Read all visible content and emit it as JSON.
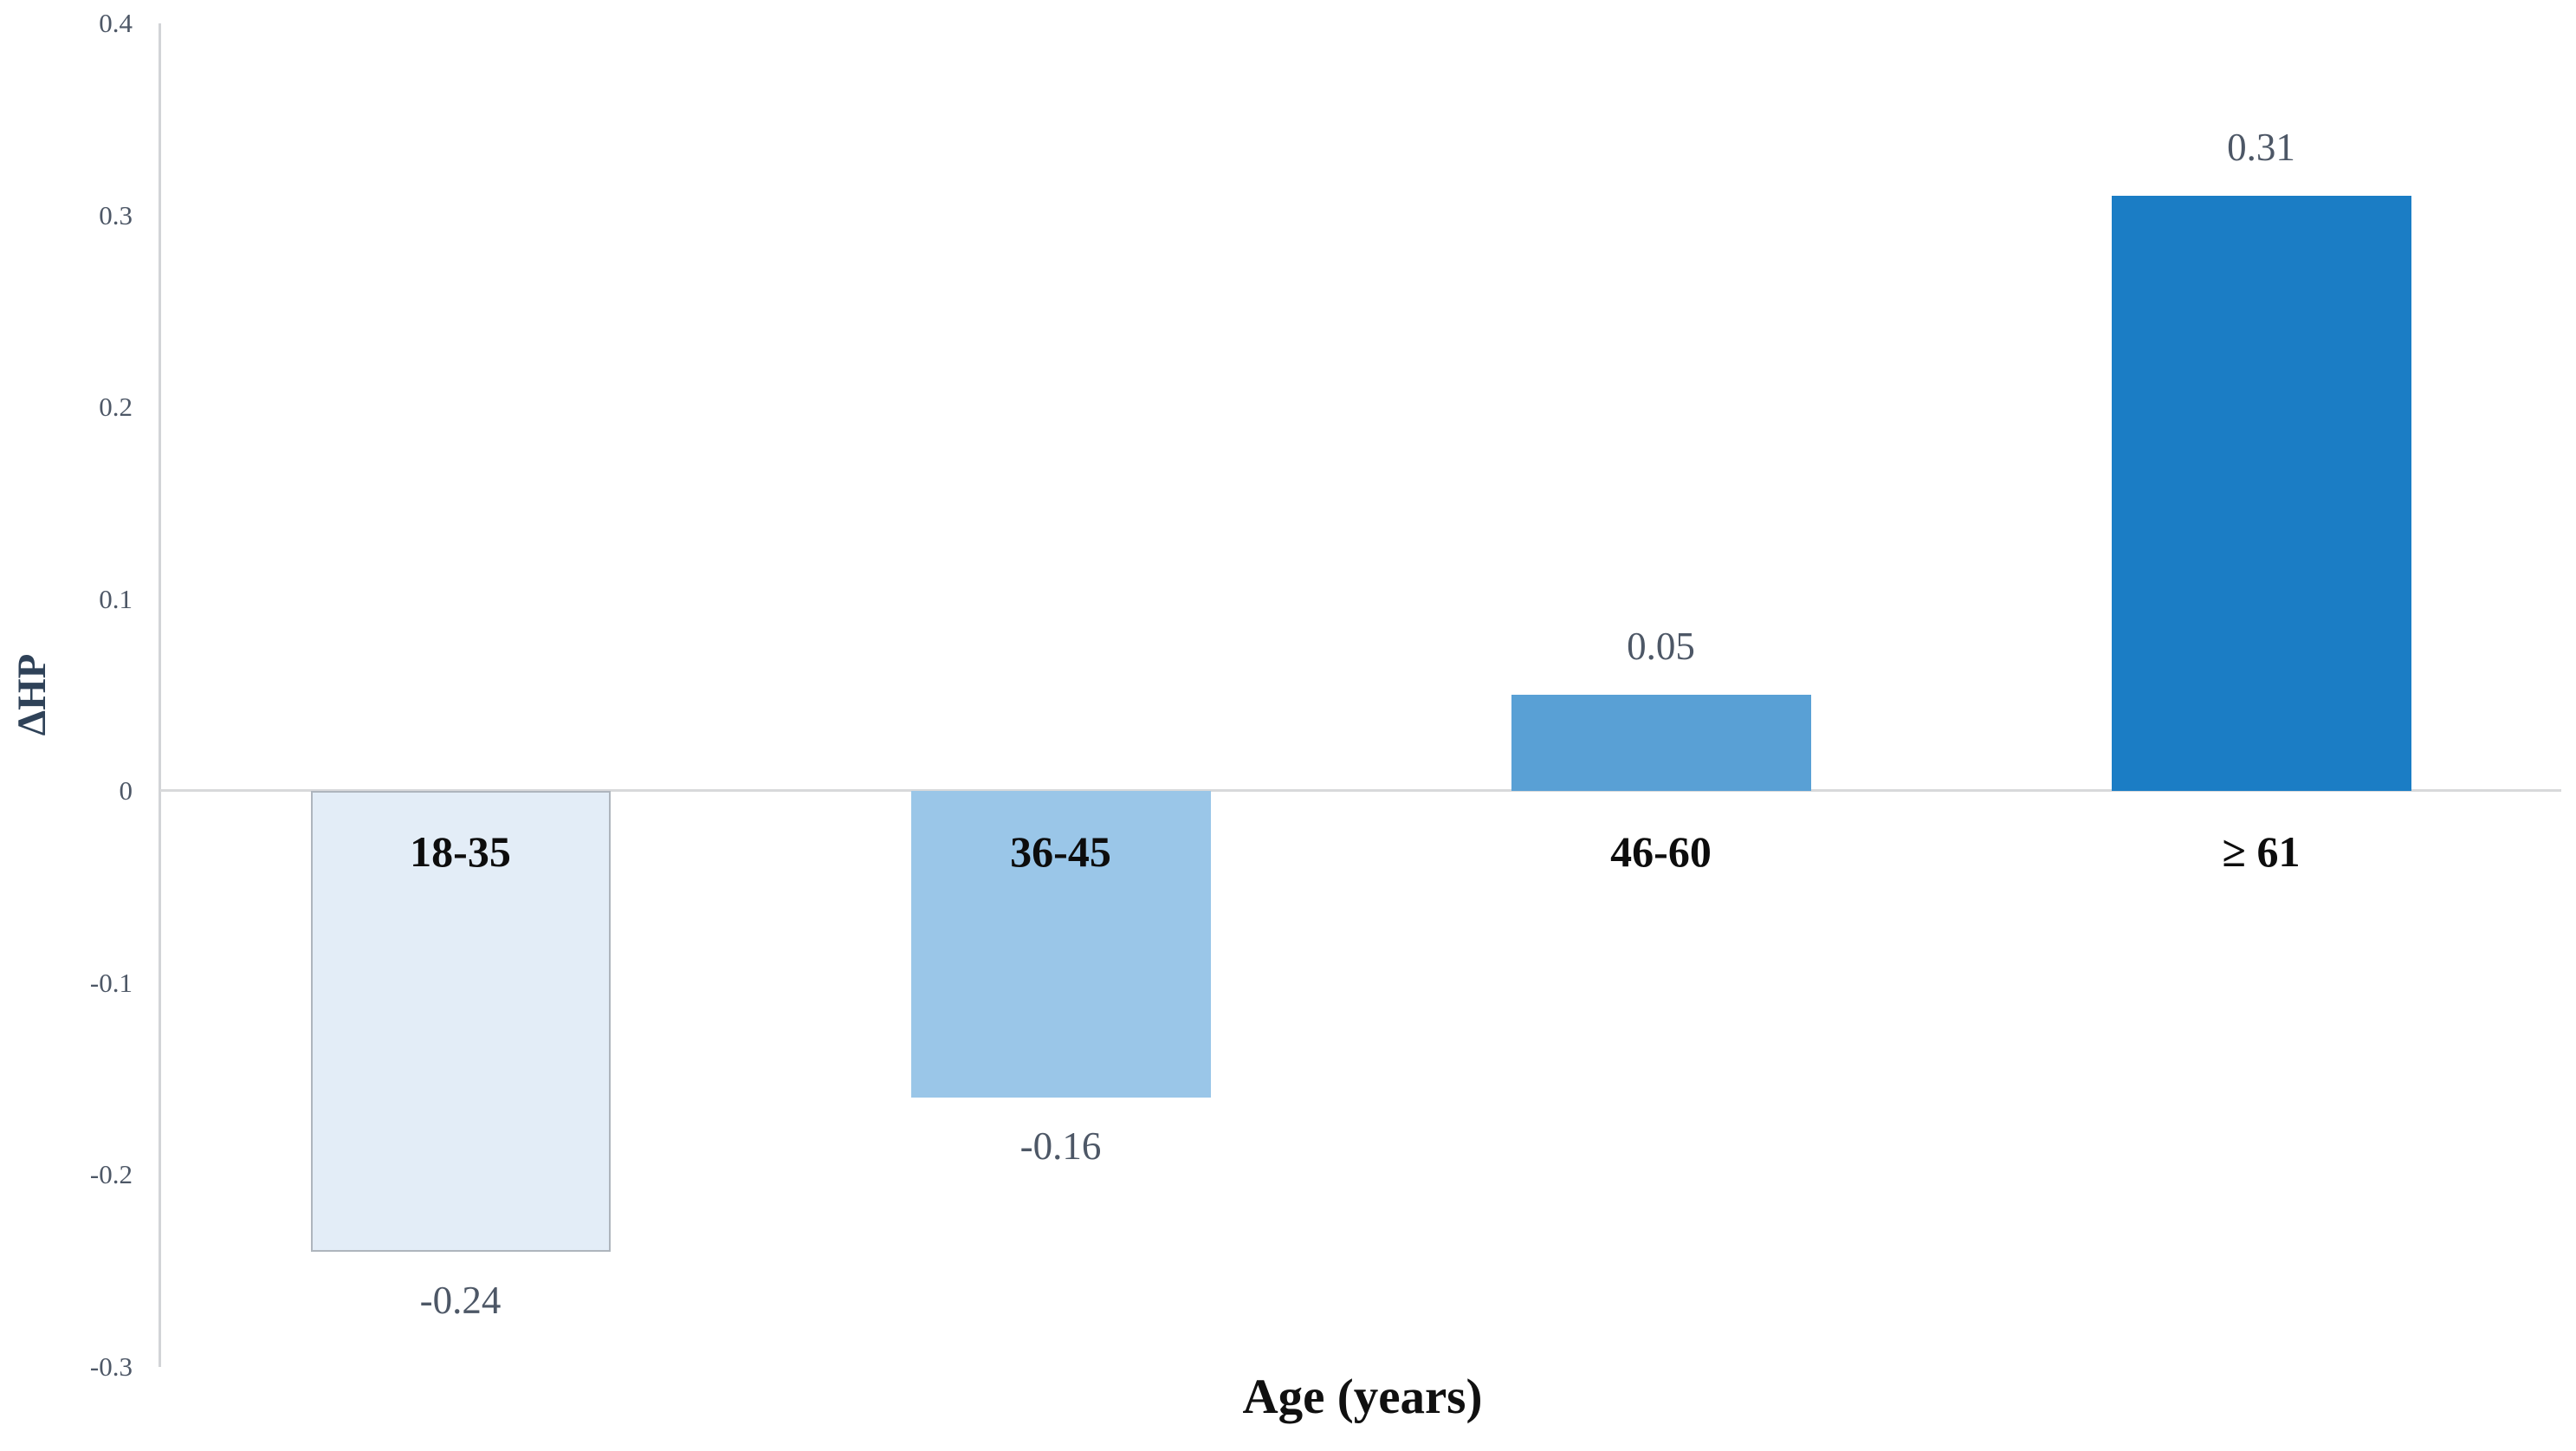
{
  "chart_data": {
    "type": "bar",
    "title": "",
    "xlabel": "Age (years)",
    "ylabel": "ΔHP",
    "categories": [
      "18-35",
      "36-45",
      "46-60",
      "≥ 61"
    ],
    "values": [
      -0.24,
      -0.16,
      0.05,
      0.31
    ],
    "value_labels": [
      "-0.24",
      "-0.16",
      "0.05",
      "0.31"
    ],
    "bar_colors": [
      "#e3edf7",
      "#9ac6e8",
      "#59a0d5",
      "#1b7dc5"
    ],
    "bar_border_colors": [
      "#aeb5bd",
      "none",
      "none",
      "none"
    ],
    "ylim": [
      -0.3,
      0.4
    ],
    "ytick_labels": [
      "0.4",
      "0.3",
      "0.2",
      "0.1",
      "0",
      "-0.1",
      "-0.2",
      "-0.3"
    ],
    "ytick_values": [
      0.4,
      0.3,
      0.2,
      0.1,
      0,
      -0.1,
      -0.2,
      -0.3
    ],
    "grid": "none",
    "legend": "none",
    "background_color": "#ffffff",
    "axis_line_color": "#d2d4d7",
    "zero_line_color": "#d8d9db",
    "tick_label_color": "#4d5766",
    "value_label_color": "#4d5766",
    "category_label_color": "#0d0d0d",
    "y_title_color": "#2f4258",
    "x_title_color": "#101010"
  }
}
